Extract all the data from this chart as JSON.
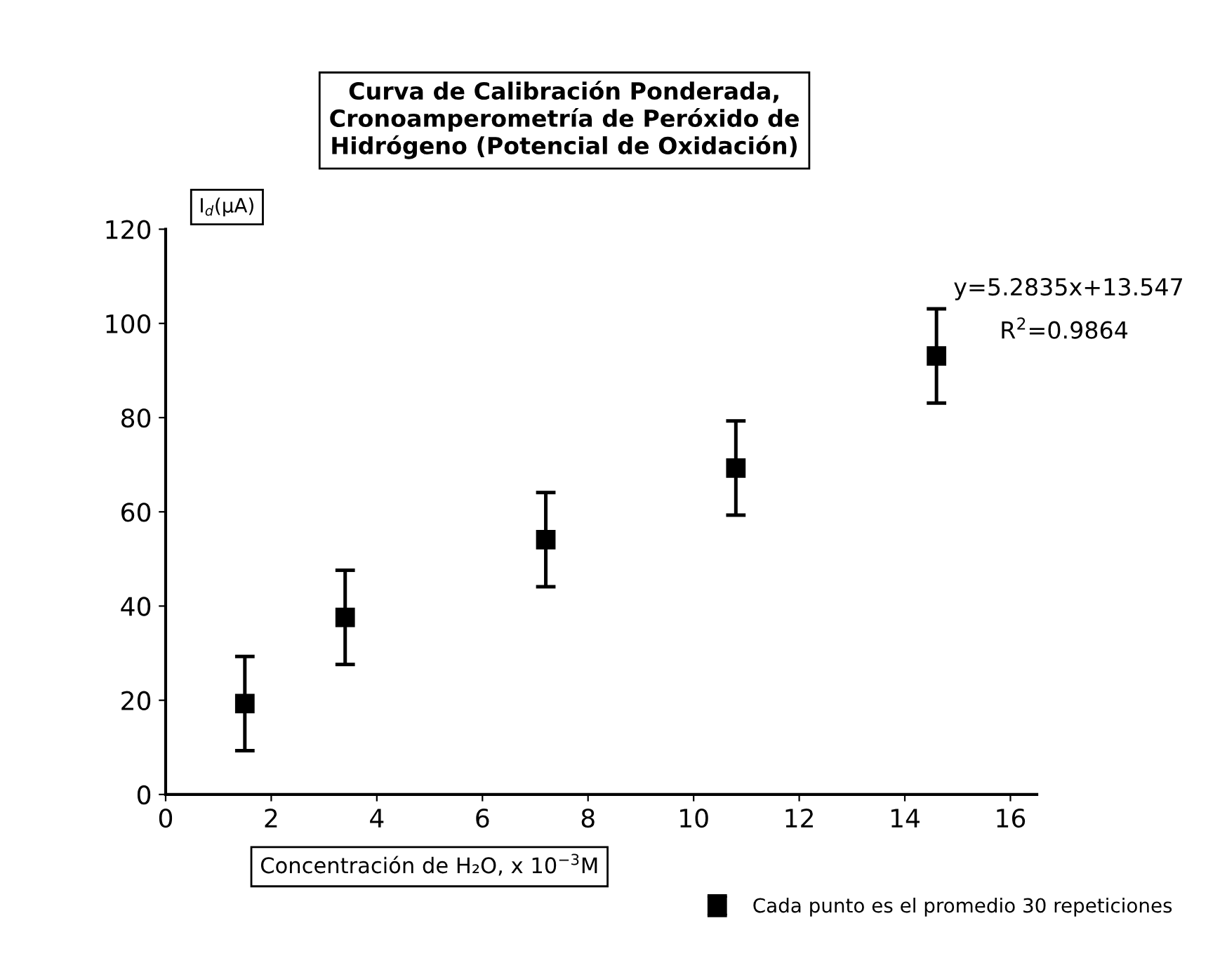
{
  "chart_data": {
    "type": "scatter",
    "title": "Curva de Calibración Ponderada,\nCronoamperometría de Peróxido de\nHidrógeno (Potencial de Oxidación)",
    "xlabel": "Concentración de H₂O, x 10$^{−3}$M",
    "ylabel": "I$_{d}$(μA)",
    "x": [
      1.5,
      3.4,
      7.2,
      10.8,
      14.6
    ],
    "series": [
      {
        "name": "Cada punto es el promedio 30 repeticiones",
        "color": "#000000",
        "values": [
          19.3,
          37.6,
          54.1,
          69.3,
          93.1
        ],
        "errors": [
          10,
          10,
          10,
          10,
          10
        ]
      }
    ],
    "xlim": [
      0,
      16.5
    ],
    "xticks": [
      0,
      2,
      4,
      6,
      8,
      10,
      12,
      14,
      16
    ],
    "ylim": [
      0,
      120
    ],
    "yticks": [
      0,
      20,
      40,
      60,
      80,
      100,
      120
    ],
    "annotations": [
      "y=5.2835x+13.547",
      "R$^{2}$=0.9864"
    ],
    "marker": "square",
    "grid": false,
    "legend": "bottom right"
  }
}
